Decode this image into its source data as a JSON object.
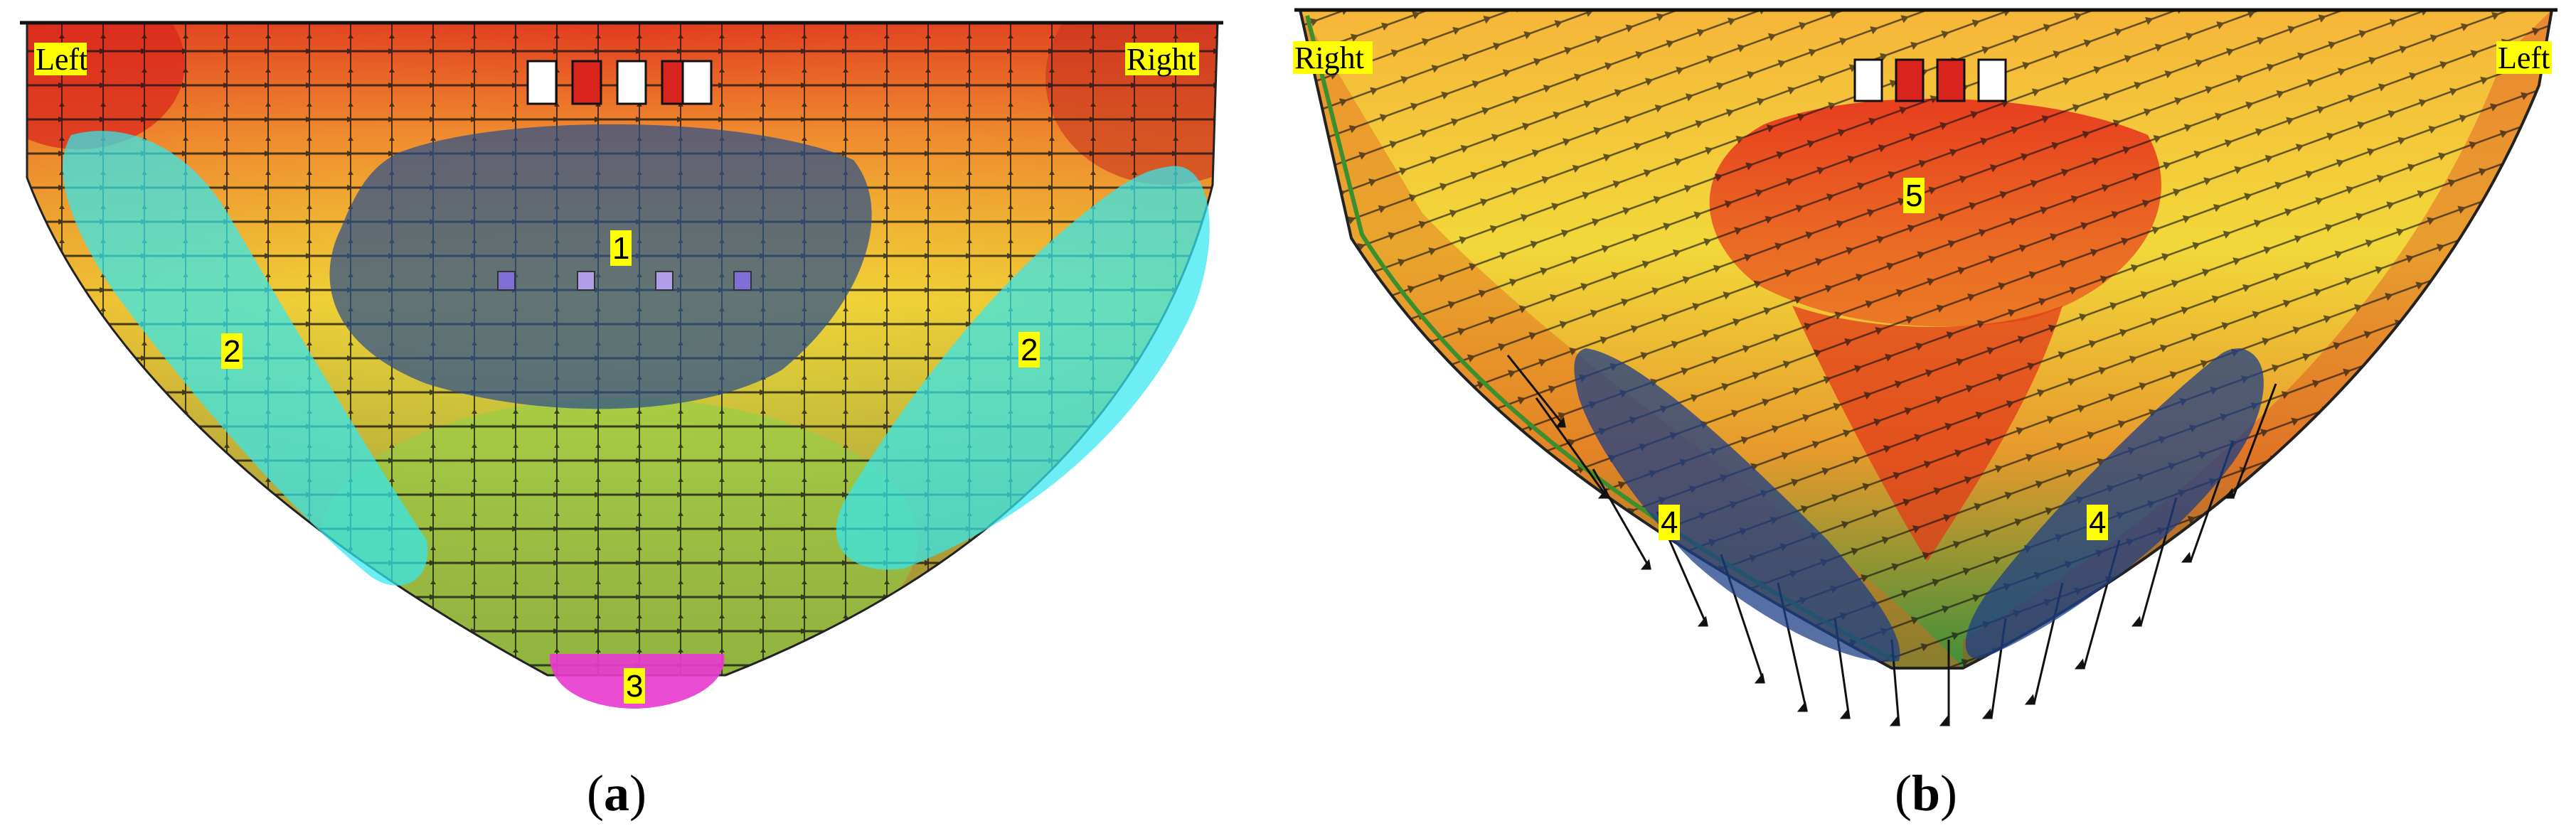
{
  "panels": [
    {
      "id": "a",
      "caption": "a",
      "caption_open": "(",
      "caption_close": ")",
      "left_label": "Left",
      "right_label": "Right",
      "zones": [
        "1",
        "2",
        "2",
        "3"
      ]
    },
    {
      "id": "b",
      "caption": "b",
      "caption_open": "(",
      "caption_close": ")",
      "left_label": "Right",
      "right_label": "Left",
      "zones": [
        "5",
        "4",
        "4"
      ]
    }
  ],
  "colors": {
    "red": "#d8241c",
    "orange": "#f0892e",
    "yellow": "#f2e43a",
    "green": "#8fd64a",
    "zone_1": "#2b4f8a",
    "zone_2": "#33e8f0",
    "zone_3": "#e83ccf",
    "zone_4": "#1e3f86",
    "zone_5": "#ef2a12",
    "label_bg": "#ffff00"
  }
}
